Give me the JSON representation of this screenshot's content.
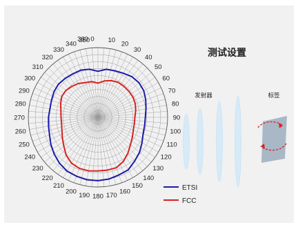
{
  "setup": {
    "title": "测试设置",
    "transmitter_label": "发射器",
    "tag_label": "标签"
  },
  "colors": {
    "etsi": "#1a1aa8",
    "fcc": "#d62020",
    "wave": "#d6eaf8",
    "tag": "#a9b8c6",
    "rotation_arrow": "#e02020"
  },
  "chart_data": {
    "type": "polar-line",
    "theta_unit": "deg",
    "theta_ticks": [
      0,
      10,
      20,
      30,
      40,
      50,
      60,
      70,
      80,
      90,
      100,
      110,
      120,
      130,
      140,
      150,
      160,
      170,
      180,
      190,
      200,
      210,
      220,
      230,
      240,
      250,
      260,
      270,
      280,
      290,
      300,
      310,
      320,
      330,
      340,
      350,
      360
    ],
    "radial_rings": 10,
    "grid": true,
    "legend_position": "bottom-right",
    "series": [
      {
        "name": "ETSI",
        "color": "#1a1aa8",
        "theta": [
          0,
          10,
          20,
          30,
          40,
          50,
          60,
          70,
          80,
          90,
          100,
          110,
          120,
          130,
          140,
          150,
          160,
          170,
          180,
          190,
          200,
          210,
          220,
          230,
          240,
          250,
          260,
          270,
          280,
          290,
          300,
          310,
          320,
          330,
          340,
          350
        ],
        "r": [
          0.66,
          0.7,
          0.71,
          0.73,
          0.76,
          0.77,
          0.76,
          0.73,
          0.7,
          0.68,
          0.68,
          0.69,
          0.73,
          0.78,
          0.82,
          0.87,
          0.88,
          0.9,
          0.91,
          0.91,
          0.9,
          0.89,
          0.86,
          0.82,
          0.78,
          0.74,
          0.72,
          0.71,
          0.7,
          0.71,
          0.73,
          0.74,
          0.73,
          0.72,
          0.72,
          0.7
        ]
      },
      {
        "name": "FCC",
        "color": "#d62020",
        "theta": [
          0,
          10,
          20,
          30,
          40,
          50,
          60,
          70,
          80,
          90,
          100,
          110,
          120,
          130,
          140,
          150,
          160,
          170,
          180,
          190,
          200,
          210,
          220,
          230,
          240,
          250,
          260,
          270,
          280,
          290,
          300,
          310,
          320,
          330,
          340,
          350
        ],
        "r": [
          0.49,
          0.53,
          0.56,
          0.58,
          0.58,
          0.58,
          0.58,
          0.57,
          0.55,
          0.53,
          0.53,
          0.54,
          0.57,
          0.61,
          0.67,
          0.73,
          0.77,
          0.77,
          0.77,
          0.78,
          0.78,
          0.76,
          0.71,
          0.64,
          0.59,
          0.55,
          0.53,
          0.53,
          0.54,
          0.57,
          0.6,
          0.6,
          0.58,
          0.56,
          0.53,
          0.52
        ]
      }
    ]
  }
}
